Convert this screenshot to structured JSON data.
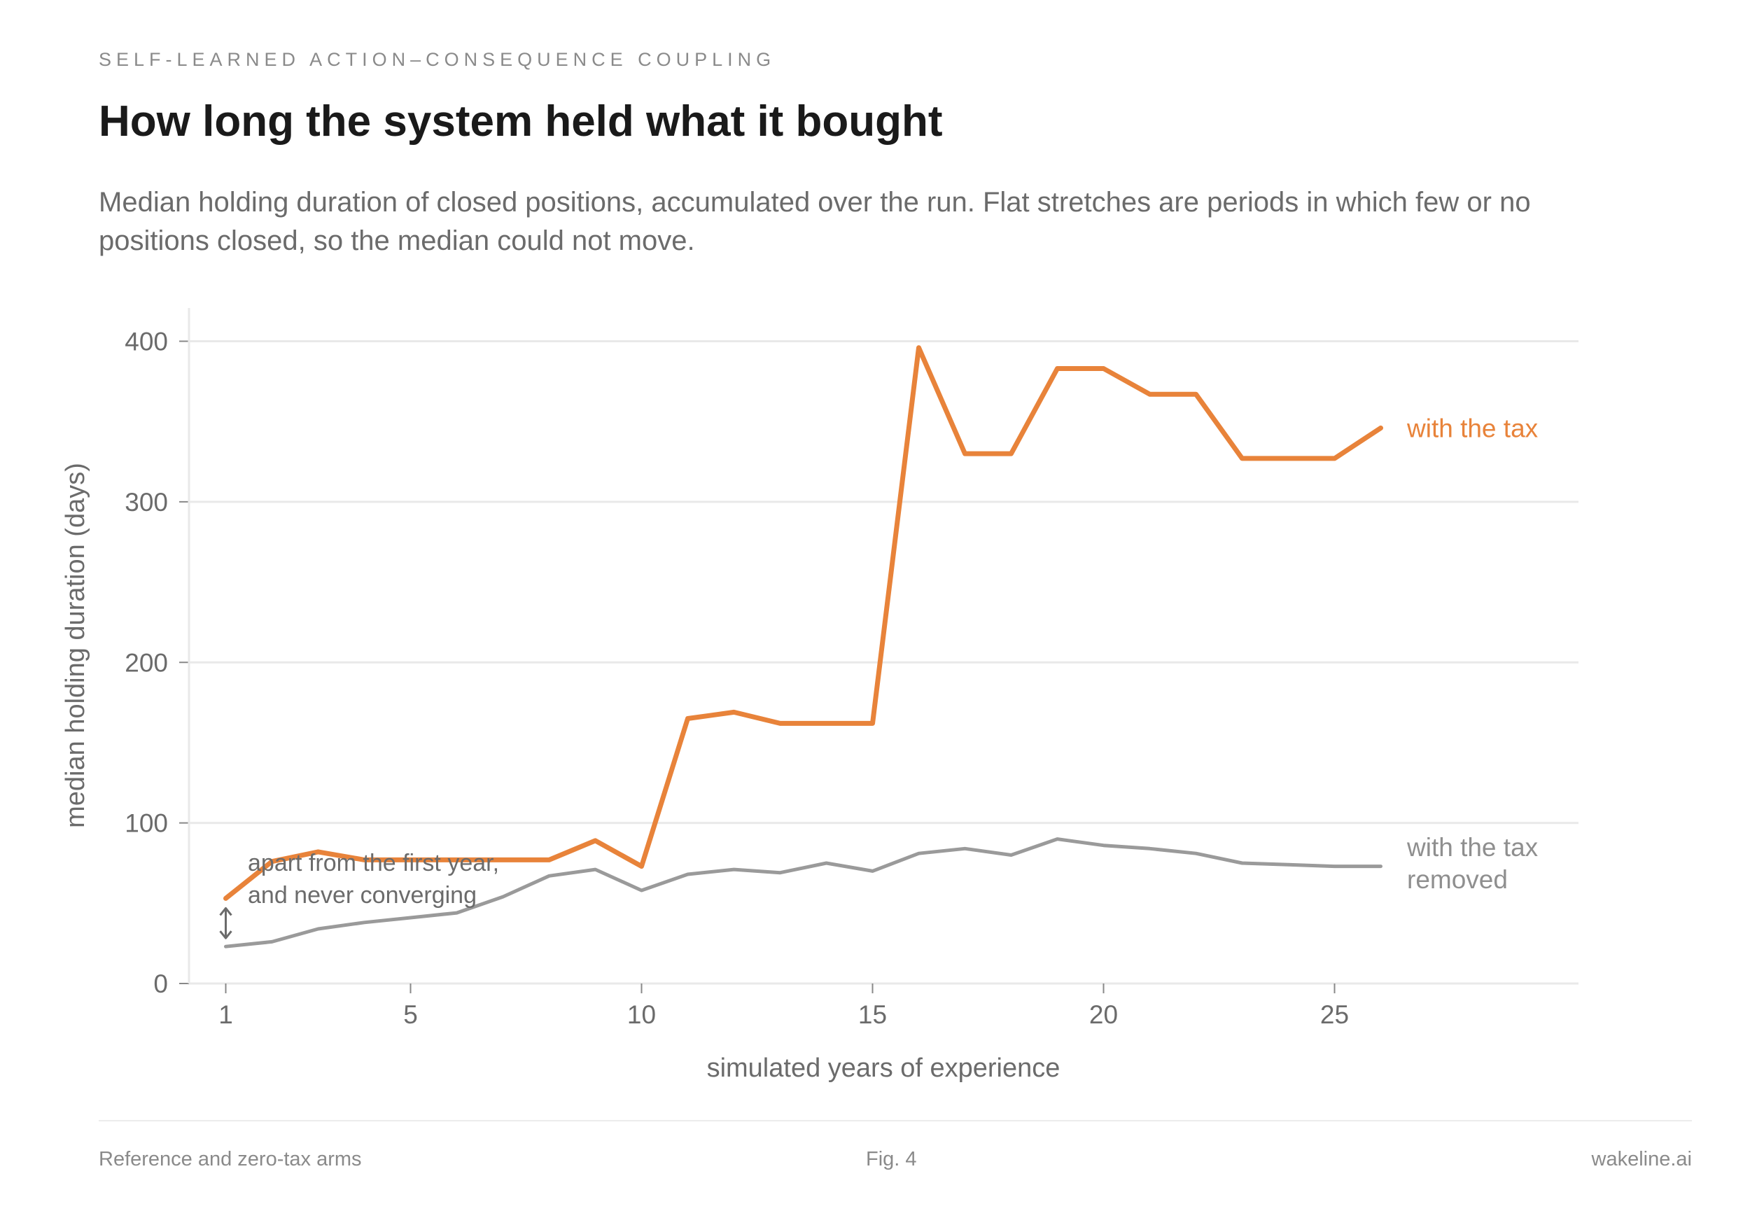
{
  "header": {
    "eyebrow": "SELF-LEARNED ACTION–CONSEQUENCE COUPLING",
    "title": "How long the system held what it bought",
    "subtitle": "Median holding duration of closed positions, accumulated over the run. Flat stretches are periods in which few or no positions closed, so the median could not move."
  },
  "footer": {
    "left": "Reference and zero-tax arms",
    "center": "Fig. 4",
    "right": "wakeline.ai"
  },
  "chart_data": {
    "type": "line",
    "xlabel": "simulated years of experience",
    "ylabel": "median holding duration (days)",
    "xlim": [
      0.2,
      30
    ],
    "ylim": [
      0,
      420
    ],
    "xticks": [
      1,
      5,
      10,
      15,
      20,
      25
    ],
    "yticks": [
      0,
      100,
      200,
      300,
      400
    ],
    "grid": "horizontal",
    "x": [
      1,
      2,
      3,
      4,
      5,
      6,
      7,
      8,
      9,
      10,
      11,
      12,
      13,
      14,
      15,
      16,
      17,
      18,
      19,
      20,
      21,
      22,
      23,
      24,
      25,
      26
    ],
    "series": [
      {
        "name": "with the tax",
        "color": "#e8833a",
        "values": [
          53,
          76,
          82,
          77,
          77,
          77,
          77,
          77,
          89,
          73,
          165,
          169,
          162,
          162,
          162,
          396,
          330,
          330,
          383,
          383,
          367,
          367,
          327,
          327,
          327,
          346
        ]
      },
      {
        "name": "with the tax removed",
        "label_lines": [
          "with the tax",
          "removed"
        ],
        "color": "#9a9a9a",
        "values": [
          23,
          26,
          34,
          38,
          41,
          44,
          54,
          67,
          71,
          58,
          68,
          71,
          69,
          75,
          70,
          81,
          84,
          80,
          90,
          86,
          84,
          81,
          75,
          74,
          73,
          73
        ]
      }
    ],
    "annotation": {
      "lines": [
        "apart from the first year,",
        "and never converging"
      ],
      "x": 1,
      "from": 23,
      "to": 53
    }
  }
}
